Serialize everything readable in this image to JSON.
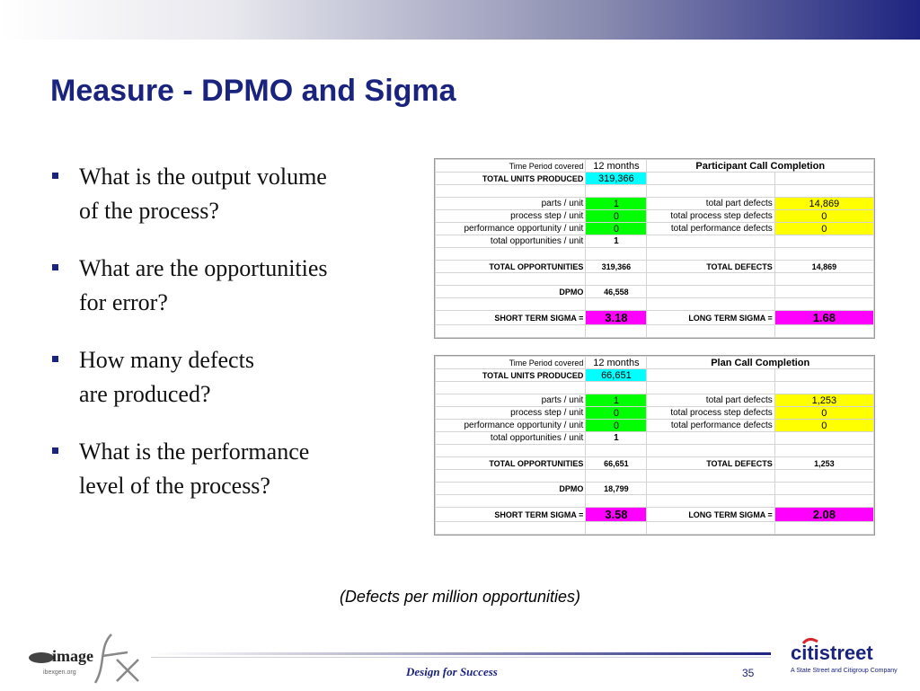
{
  "title": "Measure - DPMO and Sigma",
  "bullets": [
    {
      "line1": "What is the output volume",
      "line2": "of the process?"
    },
    {
      "line1": "What are the opportunities",
      "line2": "for error?"
    },
    {
      "line1": "How many defects",
      "line2": "are produced?"
    },
    {
      "line1": "What is the performance",
      "line2": "level of the process?"
    }
  ],
  "tables": [
    {
      "time_period_label": "Time Period covered",
      "time_period_value": "12 months",
      "heading": "Participant Call Completion",
      "total_units_label": "TOTAL UNITS PRODUCED",
      "total_units_value": "319,366",
      "parts_label": "parts / unit",
      "parts_value": "1",
      "process_step_label": "process step / unit",
      "process_step_value": "0",
      "perf_opp_label": "performance opportunity  / unit",
      "perf_opp_value": "0",
      "total_opp_unit_label": "total opportunities / unit",
      "total_opp_unit_value": "1",
      "total_part_defects_label": "total part defects",
      "total_part_defects_value": "14,869",
      "total_process_defects_label": "total process step defects",
      "total_process_defects_value": "0",
      "total_perf_defects_label": "total performance defects",
      "total_perf_defects_value": "0",
      "total_opportunities_label": "TOTAL OPPORTUNITIES",
      "total_opportunities_value": "319,366",
      "total_defects_label": "TOTAL DEFECTS",
      "total_defects_value": "14,869",
      "dpmo_label": "DPMO",
      "dpmo_value": "46,558",
      "short_sigma_label": "SHORT TERM SIGMA =",
      "short_sigma_value": "3.18",
      "long_sigma_label": "LONG TERM SIGMA =",
      "long_sigma_value": "1.68"
    },
    {
      "time_period_label": "Time Period covered",
      "time_period_value": "12 months",
      "heading": "Plan Call Completion",
      "total_units_label": "TOTAL UNITS PRODUCED",
      "total_units_value": "66,651",
      "parts_label": "parts / unit",
      "parts_value": "1",
      "process_step_label": "process step / unit",
      "process_step_value": "0",
      "perf_opp_label": "performance opportunity  / unit",
      "perf_opp_value": "0",
      "total_opp_unit_label": "total opportunities / unit",
      "total_opp_unit_value": "1",
      "total_part_defects_label": "total part defects",
      "total_part_defects_value": "1,253",
      "total_process_defects_label": "total process step defects",
      "total_process_defects_value": "0",
      "total_perf_defects_label": "total performance defects",
      "total_perf_defects_value": "0",
      "total_opportunities_label": "TOTAL OPPORTUNITIES",
      "total_opportunities_value": "66,651",
      "total_defects_label": "TOTAL DEFECTS",
      "total_defects_value": "1,253",
      "dpmo_label": "DPMO",
      "dpmo_value": "18,799",
      "short_sigma_label": "SHORT TERM SIGMA =",
      "short_sigma_value": "3.58",
      "long_sigma_label": "LONG TERM SIGMA =",
      "long_sigma_value": "2.08"
    }
  ],
  "caption": "(Defects per million opportunities)",
  "footer": {
    "tagline": "Design for Success",
    "page_number": "35",
    "logo_left_text": "image",
    "logo_left_sub": "fx",
    "logo_left_small": "ibexgen.org",
    "logo_right_text": "citistreet",
    "logo_right_sub": "A State Street and Citigroup Company"
  },
  "colors": {
    "title": "#1a237e",
    "cyan": "#00ffff",
    "green": "#00ff00",
    "yellow": "#ffff00",
    "magenta": "#ff00ff",
    "citi_red": "#d7262e"
  }
}
